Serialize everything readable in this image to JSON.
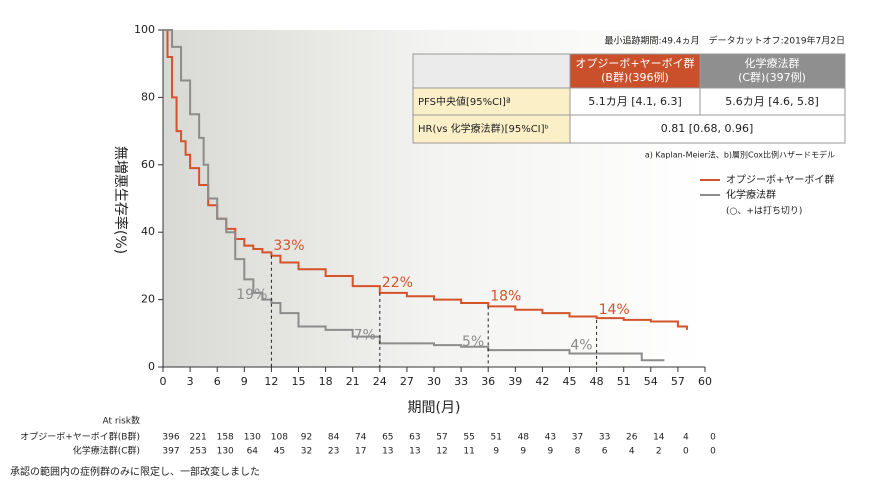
{
  "chart_data": {
    "type": "step",
    "ylabel": "無増悪生存率(%)",
    "xlabel": "期間(月)",
    "xlim": [
      0,
      60
    ],
    "ylim": [
      0,
      100
    ],
    "xticks": [
      0,
      3,
      6,
      9,
      12,
      15,
      18,
      21,
      24,
      27,
      30,
      33,
      36,
      39,
      42,
      45,
      48,
      51,
      54,
      57,
      60
    ],
    "yticks": [
      0,
      20,
      40,
      60,
      80,
      100
    ],
    "series": [
      {
        "name": "オプジーボ+ヤーボイ群",
        "color": "#d4532a",
        "x": [
          0,
          0.5,
          1,
          1.5,
          2,
          2.5,
          3,
          4,
          5,
          6,
          7,
          8,
          9,
          10,
          11,
          12,
          13,
          15,
          18,
          21,
          24,
          27,
          30,
          33,
          36,
          39,
          42,
          45,
          48,
          51,
          54,
          57,
          58
        ],
        "values": [
          100,
          92,
          80,
          70,
          67,
          63,
          59,
          54,
          48,
          44,
          41,
          38,
          36,
          35,
          34,
          33,
          31,
          29,
          27,
          24,
          22,
          21,
          20,
          19,
          18,
          17,
          16,
          15,
          14.5,
          14,
          13.5,
          12,
          11
        ]
      },
      {
        "name": "化学療法群",
        "color": "#8c8c8c",
        "x": [
          0,
          1,
          2,
          3,
          4,
          4.5,
          5,
          6,
          7,
          8,
          9,
          10,
          11,
          12,
          13,
          15,
          18,
          21,
          24,
          27,
          30,
          33,
          36,
          39,
          42,
          45,
          48,
          51,
          53,
          55.5
        ],
        "values": [
          100,
          95,
          85,
          75,
          68,
          60,
          50,
          44,
          40,
          32,
          26,
          22,
          20,
          19,
          16,
          12,
          11,
          9,
          7,
          7,
          6.5,
          6,
          5,
          5,
          5,
          4,
          4,
          4,
          2,
          2
        ]
      }
    ],
    "annotations": [
      {
        "series": 0,
        "x": 12,
        "value": 33,
        "label": "33%"
      },
      {
        "series": 0,
        "x": 24,
        "value": 22,
        "label": "22%"
      },
      {
        "series": 0,
        "x": 36,
        "value": 18,
        "label": "18%"
      },
      {
        "series": 0,
        "x": 48,
        "value": 14,
        "label": "14%"
      },
      {
        "series": 1,
        "x": 12,
        "value": 19,
        "label": "19%"
      },
      {
        "series": 1,
        "x": 24,
        "value": 7,
        "label": "7%"
      },
      {
        "series": 1,
        "x": 36,
        "value": 5,
        "label": "5%"
      },
      {
        "series": 1,
        "x": 48,
        "value": 4,
        "label": "4%"
      }
    ],
    "legend_note": "(○、+は打ち切り)"
  },
  "table": {
    "caption": "最小追跡期間:49.4ヵ月　データカットオフ:2019年7月2日",
    "header": [
      "オプジーボ+ヤーボイ群",
      "(B群)(396例)",
      "化学療法群",
      "(C群)(397例)"
    ],
    "rows": [
      [
        "PFS中央値[95%CI]ª",
        "5.1カ月 [4.1, 6.3]",
        "5.6カ月 [4.6, 5.8]"
      ],
      [
        "HR(vs 化学療法群)[95%CI]ᵇ",
        "0.81 [0.68, 0.96]"
      ]
    ],
    "footnote": "a) Kaplan-Meier法、b)層別Cox比例ハザードモデル"
  },
  "risk_table": {
    "title": "At risk数",
    "rows": [
      {
        "label": "オプジーボ+ヤーボイ群(B群)",
        "values": [
          396,
          221,
          158,
          130,
          108,
          92,
          84,
          74,
          65,
          63,
          57,
          55,
          51,
          48,
          43,
          37,
          33,
          26,
          14,
          4,
          0
        ]
      },
      {
        "label": "化学療法群(C群)",
        "values": [
          397,
          253,
          130,
          64,
          45,
          32,
          23,
          17,
          13,
          13,
          12,
          11,
          9,
          9,
          9,
          8,
          6,
          4,
          2,
          0,
          0
        ]
      }
    ]
  },
  "note": "承認の範囲内の症例群のみに限定し、一部改変しました"
}
